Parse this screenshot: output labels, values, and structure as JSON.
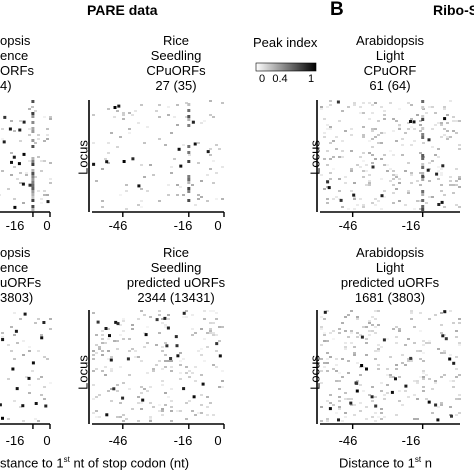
{
  "figure": {
    "panel_a_title": "PARE data",
    "panel_b_letter": "B",
    "panel_b_title": "Ribo-S",
    "bottom_xlabel_left": "stance to 1",
    "bottom_xlabel_left_sup": "st",
    "bottom_xlabel_left_rest": " nt of stop codon (nt)",
    "bottom_xlabel_right": "Distance to 1",
    "bottom_xlabel_right_sup": "st",
    "bottom_xlabel_right_rest": " n",
    "legend": {
      "title": "Peak index",
      "ticks": [
        "0",
        "0.4",
        "1"
      ]
    }
  },
  "chart_data": [
    {
      "type": "heatmap",
      "panel": "A-top-left",
      "title_lines": [
        "opsis",
        "ence",
        "ORFs",
        "4)"
      ],
      "ylabel": "",
      "xticks": [
        -16,
        0
      ],
      "xtick_labels": [
        "-16",
        "0"
      ],
      "xlim": [
        -60,
        0
      ],
      "highlight_column": -16
    },
    {
      "type": "heatmap",
      "panel": "A-top-right",
      "title_lines": [
        "Rice",
        "Seedling",
        "CPuORFs",
        "27 (35)"
      ],
      "ylabel": "Locus",
      "xticks": [
        -46,
        -16,
        0
      ],
      "xtick_labels": [
        "-46",
        "-16",
        "0"
      ],
      "xlim": [
        -60,
        0
      ],
      "highlight_column": -16
    },
    {
      "type": "heatmap",
      "panel": "B-top",
      "title_lines": [
        "Arabidopsis",
        "Light",
        "CPuORF",
        "61 (64)"
      ],
      "ylabel": "Locus",
      "xticks": [
        -46,
        -16
      ],
      "xtick_labels": [
        "-46",
        "-16"
      ],
      "xlim": [
        -60,
        0
      ],
      "highlight_column": -16
    },
    {
      "type": "heatmap",
      "panel": "A-bottom-left",
      "title_lines": [
        "opsis",
        "ence",
        "uORFs",
        "3803)"
      ],
      "ylabel": "",
      "xticks": [
        -16,
        0
      ],
      "xtick_labels": [
        "-16",
        "0"
      ],
      "xlim": [
        -60,
        0
      ]
    },
    {
      "type": "heatmap",
      "panel": "A-bottom-right",
      "title_lines": [
        "Rice",
        "Seedling",
        "predicted uORFs",
        "2344 (13431)"
      ],
      "ylabel": "Locus",
      "xticks": [
        -46,
        -16,
        0
      ],
      "xtick_labels": [
        "-46",
        "-16",
        "0"
      ],
      "xlim": [
        -60,
        0
      ]
    },
    {
      "type": "heatmap",
      "panel": "B-bottom",
      "title_lines": [
        "Arabidopsis",
        "Light",
        "predicted uORFs",
        "1681 (3803)"
      ],
      "ylabel": "Locus",
      "xticks": [
        -46,
        -16
      ],
      "xtick_labels": [
        "-46",
        "-16"
      ],
      "xlim": [
        -60,
        0
      ]
    }
  ]
}
